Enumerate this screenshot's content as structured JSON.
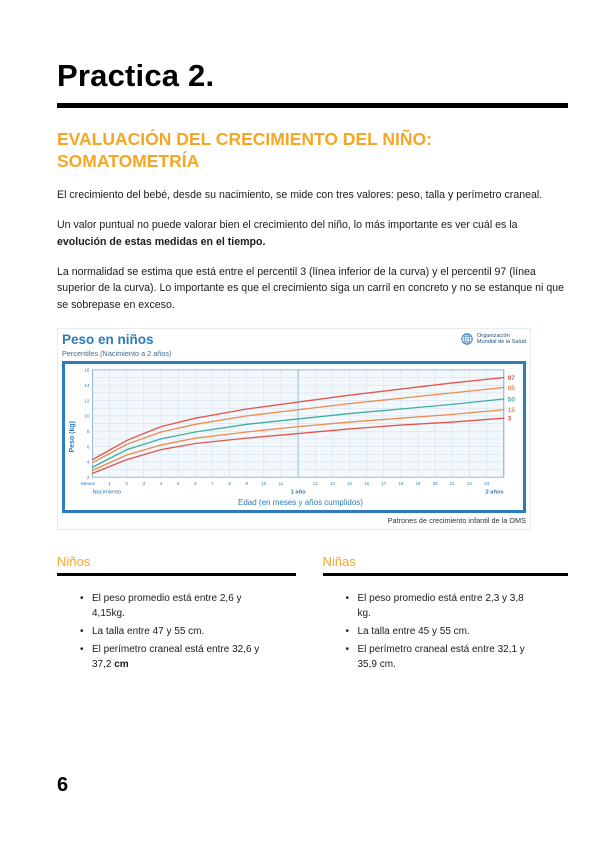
{
  "page": {
    "title": "Practica 2.",
    "number": "6"
  },
  "section": {
    "heading_line1": "EVALUACIÓN DEL CRECIMIENTO DEL NIÑO:",
    "heading_line2": "SOMATOMETRÍA"
  },
  "paragraphs": {
    "p1": "El crecimiento del bebé, desde su nacimiento, se mide con tres valores: peso, talla y perímetro craneal.",
    "p2_start": "Un valor puntual no puede valorar bien el crecimiento del niño, lo más importante es ver cuál es la ",
    "p2_bold": "evolución de estas medidas en el tiempo.",
    "p3": "La normalidad se estima que está entre el percentil 3 (línea inferior de la curva) y el percentil 97 (línea superior de la curva). Lo importante es que el crecimiento siga un carril en concreto y no se estanque ni que se sobrepase en exceso."
  },
  "chart": {
    "who_logo_line1": "Organización",
    "who_logo_line2": "Mundial de la Salud",
    "footer": "Patrones de crecimiento infantil de la OMS"
  },
  "chart_data": {
    "type": "line",
    "title": "Peso en niños",
    "subtitle": "Percentiles (Nacimiento a 2 años)",
    "xlabel": "Edad (en meses y años cumplidos)",
    "ylabel": "Peso (kg)",
    "xlim": [
      0,
      24
    ],
    "ylim": [
      2,
      16
    ],
    "x_axis_text": {
      "unit": "Meses",
      "start": "Nacimiento",
      "mid": "1 año",
      "end": "2 años"
    },
    "x": [
      0,
      2,
      4,
      6,
      9,
      12,
      15,
      18,
      21,
      24
    ],
    "series": [
      {
        "name": "97",
        "color": "#e2574c",
        "values": [
          4.3,
          6.8,
          8.6,
          9.7,
          10.9,
          11.8,
          12.7,
          13.5,
          14.3,
          15.0
        ]
      },
      {
        "name": "85",
        "color": "#ec8b4e",
        "values": [
          3.9,
          6.3,
          7.9,
          8.9,
          10.0,
          10.8,
          11.6,
          12.3,
          13.0,
          13.7
        ]
      },
      {
        "name": "50",
        "color": "#3fae9f",
        "values": [
          3.3,
          5.6,
          7.0,
          7.9,
          8.9,
          9.6,
          10.3,
          10.9,
          11.5,
          12.2
        ]
      },
      {
        "name": "15",
        "color": "#ec8b4e",
        "values": [
          2.9,
          4.9,
          6.2,
          7.1,
          7.9,
          8.6,
          9.2,
          9.7,
          10.2,
          10.8
        ]
      },
      {
        "name": "3",
        "color": "#e2574c",
        "values": [
          2.5,
          4.3,
          5.6,
          6.4,
          7.1,
          7.7,
          8.3,
          8.8,
          9.2,
          9.7
        ]
      }
    ],
    "grid": true,
    "legend_position": "right-edge-labels"
  },
  "lists": {
    "boys": {
      "heading": "Niños",
      "bullets": [
        {
          "text": "El peso promedio está entre 2,6 y 4,15kg."
        },
        {
          "text": "La talla entre 47 y 55 cm."
        },
        {
          "text": "El perímetro craneal está entre 32,6 y 37,2 ",
          "bold": "cm"
        }
      ]
    },
    "girls": {
      "heading": "Niñas",
      "bullets": [
        {
          "text": "El peso promedio está entre 2,3 y 3,8 kg."
        },
        {
          "text": "La talla entre 45 y 55 cm."
        },
        {
          "text": "El perímetro craneal está entre 32,1 y 35,9 cm."
        }
      ]
    }
  }
}
